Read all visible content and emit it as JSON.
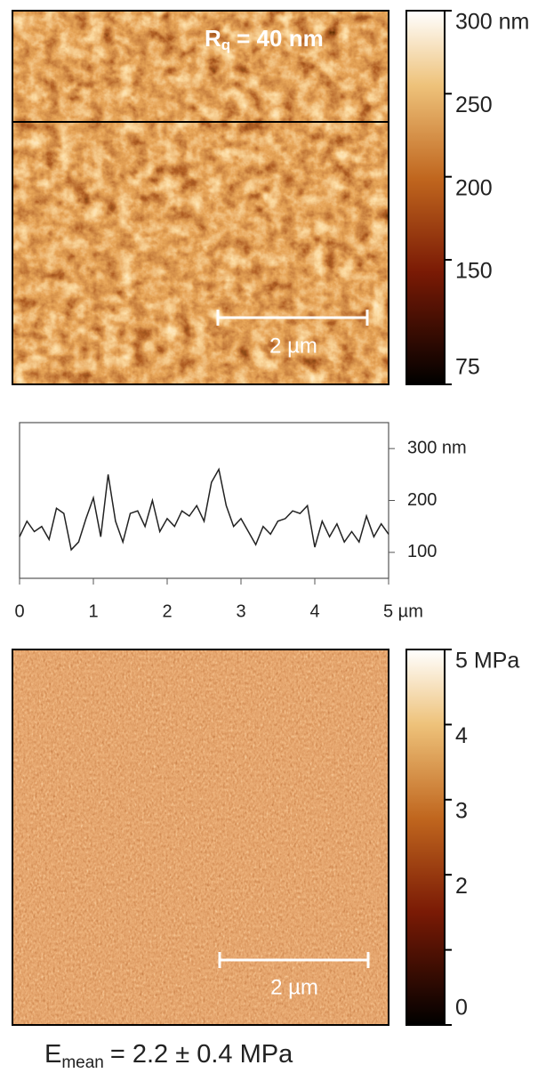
{
  "chart_data": [
    {
      "type": "image",
      "ylim": [
        75,
        300
      ],
      "yticks": [
        {
          "value": 300,
          "label": "300 nm"
        },
        250,
        200,
        150,
        75
      ],
      "annotation": {
        "symbol": "R",
        "subscript": "q",
        "text": "= 40 nm"
      },
      "scale_bar": "2 µm"
    },
    {
      "type": "line",
      "color": "#222222",
      "x": [
        0,
        0.1,
        0.2,
        0.3,
        0.4,
        0.5,
        0.6,
        0.7,
        0.8,
        0.9,
        1.0,
        1.1,
        1.2,
        1.3,
        1.4,
        1.5,
        1.6,
        1.7,
        1.8,
        1.9,
        2.0,
        2.1,
        2.2,
        2.3,
        2.4,
        2.5,
        2.6,
        2.7,
        2.8,
        2.9,
        3.0,
        3.1,
        3.2,
        3.3,
        3.4,
        3.5,
        3.6,
        3.7,
        3.8,
        3.9,
        4.0,
        4.1,
        4.2,
        4.3,
        4.4,
        4.5,
        4.6,
        4.7,
        4.8,
        4.9,
        5.0
      ],
      "values": [
        130,
        160,
        140,
        150,
        125,
        185,
        175,
        105,
        120,
        165,
        205,
        130,
        250,
        160,
        120,
        175,
        180,
        150,
        200,
        140,
        165,
        150,
        180,
        170,
        190,
        160,
        235,
        260,
        190,
        150,
        165,
        140,
        115,
        150,
        135,
        160,
        165,
        180,
        175,
        190,
        110,
        160,
        130,
        155,
        120,
        140,
        120,
        170,
        130,
        155,
        135
      ],
      "xlim": [
        0,
        5
      ],
      "xticks": [
        0,
        1,
        2,
        3,
        4,
        {
          "value": 5,
          "label": "5 µm"
        }
      ],
      "ylim": [
        50,
        350
      ],
      "yticks": [
        100,
        200,
        {
          "value": 300,
          "label": "300 nm"
        }
      ]
    },
    {
      "type": "image",
      "ylim": [
        0,
        5
      ],
      "yticks": [
        {
          "value": 5,
          "label": "5 MPa"
        },
        4,
        3,
        2,
        0
      ],
      "minor_yticks": [
        1
      ],
      "scale_bar": "2 µm",
      "caption": {
        "symbol": "E",
        "subscript": "mean",
        "text": "= 2.2 ± 0.4 MPa"
      }
    }
  ]
}
